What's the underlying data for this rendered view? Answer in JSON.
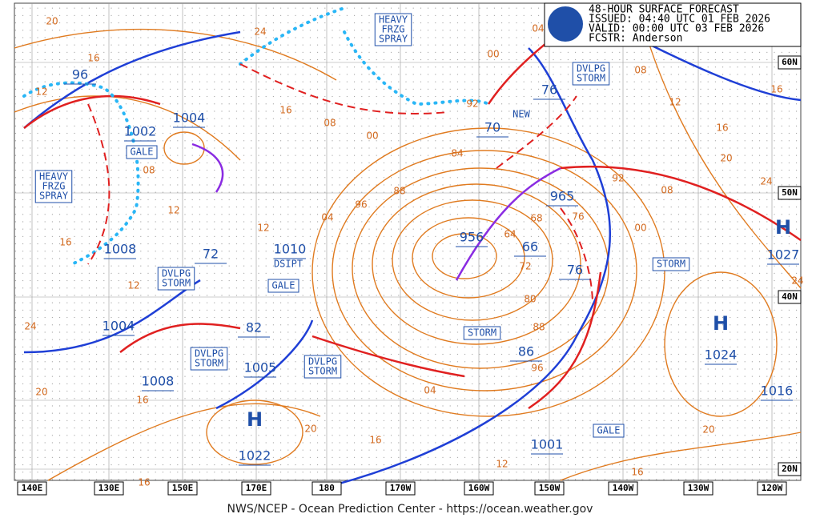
{
  "header": {
    "title": "48-HOUR SURFACE FORECAST",
    "issued": "ISSUED: 04:40 UTC 01 FEB 2026",
    "valid": "VALID:  00:00 UTC 03 FEB 2026",
    "forecaster": "FCSTR:  Anderson"
  },
  "longitudes": [
    "140E",
    "130E",
    "150E",
    "170E",
    "180",
    "170W",
    "160W",
    "150W",
    "140W",
    "130W",
    "120W"
  ],
  "latitudes": [
    "60N",
    "50N",
    "40N",
    "20N"
  ],
  "pressure_labels": [
    "96",
    "1002",
    "1004",
    "1008",
    "1010",
    "1004",
    "1008",
    "1005",
    "1022",
    "956",
    "965",
    "1001",
    "1024",
    "1027",
    "1016",
    "76",
    "70",
    "72",
    "82",
    "66",
    "76",
    "86"
  ],
  "highs": [
    "H",
    "H",
    "H"
  ],
  "warnings": [
    [
      "GALE"
    ],
    [
      "DVLPG",
      "STORM"
    ],
    [
      "GALE"
    ],
    [
      "DVLPG",
      "STORM"
    ],
    [
      "DVLPG",
      "STORM"
    ],
    [
      "STORM"
    ],
    [
      "STORM"
    ],
    [
      "GALE"
    ],
    [
      "DVLPG",
      "STORM"
    ],
    [
      "HEAVY",
      "FRZG",
      "SPRAY"
    ],
    [
      "HEAVY",
      "FRZG",
      "SPRAY"
    ]
  ],
  "notes": [
    "DSIPT",
    "NEW"
  ],
  "isobar_labels": [
    "20",
    "24",
    "16",
    "12",
    "16",
    "08",
    "00",
    "92",
    "84",
    "88",
    "96",
    "04",
    "12",
    "08",
    "16",
    "12",
    "12",
    "24",
    "20",
    "16",
    "16",
    "20",
    "16",
    "04",
    "96",
    "88",
    "80",
    "72",
    "64",
    "68",
    "76",
    "00",
    "08",
    "92",
    "12",
    "16",
    "20",
    "24",
    "24",
    "20",
    "16",
    "12",
    "08",
    "00",
    "04",
    "16"
  ],
  "footer": "NWS/NCEP - Ocean Prediction Center - https://ocean.weather.gov"
}
